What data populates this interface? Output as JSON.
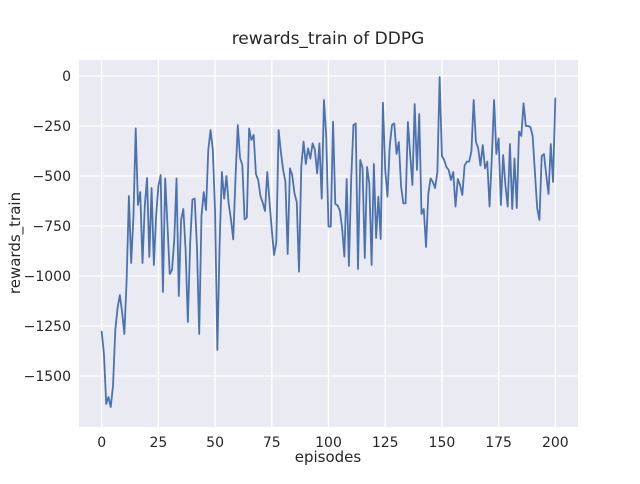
{
  "figure": {
    "title": "rewards_train of DDPG",
    "xlabel": "episodes",
    "ylabel": "rewards_train",
    "background_color": "#ffffff",
    "axes_background_color": "#eaeaf2",
    "grid_color": "#ffffff",
    "text_color": "#262626"
  },
  "chart_data": {
    "type": "line",
    "title": "rewards_train of DDPG",
    "xlabel": "episodes",
    "ylabel": "rewards_train",
    "grid": true,
    "legend": false,
    "style": "seaborn-darkgrid",
    "x_start": 0,
    "x_step": 1,
    "x_ticks": [
      0,
      25,
      50,
      75,
      100,
      125,
      150,
      175,
      200
    ],
    "y_ticks": [
      0,
      -250,
      -500,
      -750,
      -1000,
      -1250,
      -1500
    ],
    "xlim": [
      -10,
      210
    ],
    "ylim": [
      -1755,
      80
    ],
    "series": [
      {
        "name": "rewards_train",
        "color": "#4c72b0",
        "values": [
          -1278,
          -1390,
          -1640,
          -1605,
          -1655,
          -1548,
          -1270,
          -1160,
          -1095,
          -1180,
          -1290,
          -1020,
          -600,
          -935,
          -705,
          -262,
          -645,
          -580,
          -935,
          -650,
          -510,
          -905,
          -560,
          -945,
          -700,
          -550,
          -495,
          -1080,
          -512,
          -745,
          -990,
          -970,
          -820,
          -512,
          -1100,
          -720,
          -665,
          -870,
          -1230,
          -837,
          -618,
          -613,
          -853,
          -1290,
          -700,
          -580,
          -670,
          -370,
          -270,
          -370,
          -680,
          -1370,
          -837,
          -480,
          -613,
          -500,
          -640,
          -717,
          -817,
          -510,
          -245,
          -410,
          -445,
          -717,
          -708,
          -262,
          -320,
          -295,
          -490,
          -520,
          -600,
          -633,
          -675,
          -480,
          -630,
          -770,
          -895,
          -830,
          -270,
          -380,
          -470,
          -528,
          -890,
          -462,
          -495,
          -587,
          -630,
          -978,
          -453,
          -328,
          -440,
          -362,
          -413,
          -337,
          -370,
          -487,
          -337,
          -613,
          -120,
          -303,
          -753,
          -753,
          -228,
          -640,
          -647,
          -672,
          -760,
          -903,
          -515,
          -950,
          -520,
          -245,
          -237,
          -965,
          -420,
          -460,
          -910,
          -455,
          -537,
          -945,
          -440,
          -810,
          -603,
          -815,
          -133,
          -467,
          -603,
          -350,
          -245,
          -237,
          -390,
          -330,
          -553,
          -637,
          -637,
          -230,
          -390,
          -545,
          -140,
          -470,
          -190,
          -690,
          -665,
          -855,
          -590,
          -512,
          -530,
          -560,
          -480,
          -5,
          -400,
          -420,
          -455,
          -470,
          -520,
          -480,
          -653,
          -515,
          -545,
          -595,
          -448,
          -428,
          -428,
          -378,
          -120,
          -328,
          -362,
          -448,
          -345,
          -462,
          -428,
          -653,
          -408,
          -120,
          -390,
          -312,
          -645,
          -395,
          -545,
          -653,
          -340,
          -665,
          -412,
          -660,
          -278,
          -300,
          -137,
          -250,
          -250,
          -255,
          -300,
          -480,
          -660,
          -720,
          -400,
          -390,
          -495,
          -590,
          -340,
          -530,
          -112
        ]
      }
    ]
  }
}
